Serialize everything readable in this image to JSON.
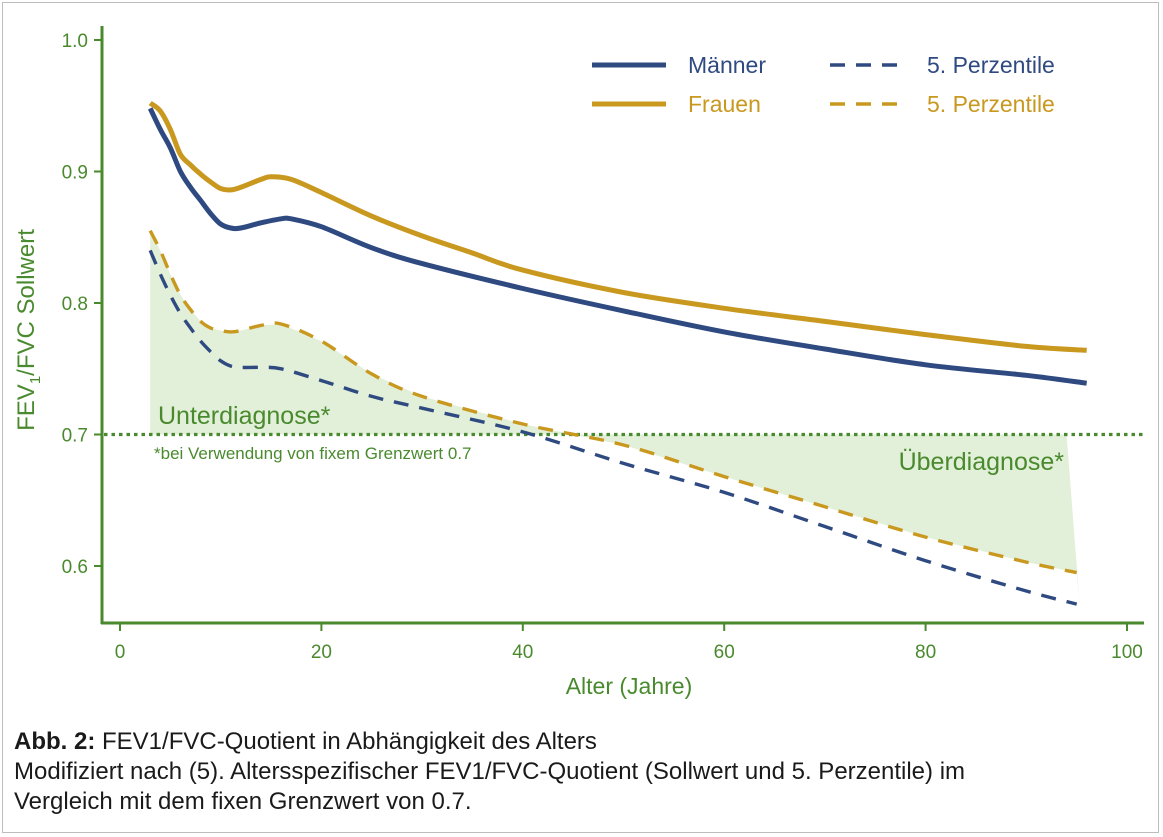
{
  "colors": {
    "green": "#4a8a2e",
    "green_fill": "#e2efd9",
    "men": "#2f4a80",
    "women": "#c9981f",
    "caption_text": "#1a1a1a"
  },
  "chart_data": {
    "type": "line",
    "xlabel": "Alter (Jahre)",
    "ylabel_main": "FEV",
    "ylabel_sub": "1",
    "ylabel_rest": "/FVC Sollwert",
    "xlim": [
      0,
      100
    ],
    "ylim": [
      0.55,
      1.0
    ],
    "xticks": [
      0,
      20,
      40,
      60,
      80,
      100
    ],
    "yticks": [
      0.6,
      0.7,
      0.8,
      0.9,
      1.0
    ],
    "ytick_labels": [
      "0.6",
      "0.7",
      "0.8",
      "0.9",
      "1.0"
    ],
    "threshold": 0.7,
    "series": [
      {
        "name": "Männer",
        "style": "solid",
        "color": "#2f4a80",
        "x": [
          3,
          4,
          5,
          6,
          7,
          8,
          9,
          10,
          11,
          12,
          14,
          16,
          17,
          20,
          25,
          30,
          40,
          50,
          60,
          70,
          80,
          90,
          96
        ],
        "y": [
          0.948,
          0.932,
          0.918,
          0.9,
          0.888,
          0.878,
          0.868,
          0.86,
          0.857,
          0.857,
          0.861,
          0.864,
          0.864,
          0.858,
          0.842,
          0.83,
          0.811,
          0.794,
          0.778,
          0.765,
          0.753,
          0.745,
          0.739
        ]
      },
      {
        "name": "Frauen",
        "style": "solid",
        "color": "#c9981f",
        "x": [
          3,
          4,
          5,
          6,
          7,
          8,
          9,
          10,
          11,
          12,
          14,
          15,
          17,
          20,
          25,
          30,
          35,
          40,
          50,
          60,
          70,
          80,
          90,
          96
        ],
        "y": [
          0.952,
          0.946,
          0.932,
          0.913,
          0.905,
          0.898,
          0.892,
          0.887,
          0.886,
          0.888,
          0.894,
          0.896,
          0.894,
          0.884,
          0.866,
          0.851,
          0.838,
          0.825,
          0.808,
          0.796,
          0.786,
          0.776,
          0.767,
          0.764
        ]
      },
      {
        "name": "5. Perzentile",
        "group": "Männer",
        "style": "dashed",
        "color": "#2f4a80",
        "x": [
          3,
          4,
          5,
          6,
          7,
          8,
          9,
          10,
          11,
          12,
          14,
          16,
          20,
          25,
          30,
          40,
          50,
          60,
          70,
          80,
          90,
          95
        ],
        "y": [
          0.84,
          0.822,
          0.806,
          0.792,
          0.781,
          0.771,
          0.763,
          0.756,
          0.752,
          0.751,
          0.751,
          0.75,
          0.741,
          0.729,
          0.72,
          0.702,
          0.678,
          0.656,
          0.63,
          0.604,
          0.581,
          0.571
        ]
      },
      {
        "name": "5. Perzentile",
        "group": "Frauen",
        "style": "dashed",
        "color": "#c9981f",
        "x": [
          3,
          4,
          5,
          6,
          7,
          8,
          9,
          10,
          11,
          12,
          14,
          16,
          20,
          25,
          30,
          40,
          50,
          60,
          70,
          80,
          90,
          95
        ],
        "y": [
          0.855,
          0.84,
          0.822,
          0.806,
          0.795,
          0.786,
          0.781,
          0.779,
          0.778,
          0.779,
          0.783,
          0.784,
          0.771,
          0.746,
          0.729,
          0.708,
          0.692,
          0.668,
          0.645,
          0.622,
          0.603,
          0.595
        ]
      }
    ],
    "legend": [
      {
        "label": "Männer",
        "style": "solid",
        "color": "#2f4a80"
      },
      {
        "label": "5. Perzentile",
        "style": "dashed",
        "color": "#2f4a80"
      },
      {
        "label": "Frauen",
        "style": "solid",
        "color": "#c9981f"
      },
      {
        "label": "5. Perzentile",
        "style": "dashed",
        "color": "#c9981f"
      }
    ],
    "legend_position": "top-right",
    "annotations": {
      "under": "Unterdiagnose*",
      "under_note": "*bei Verwendung von fixem Grenzwert 0.7",
      "over": "Überdiagnose*"
    }
  },
  "caption": {
    "label": "Abb. 2:",
    "title": " FEV1/FVC-Quotient in Abhängigkeit des Alters",
    "line2": "Modifiziert nach (5). Altersspezifischer FEV1/FVC-Quotient (Sollwert und 5. Perzentile) im",
    "line3": "Vergleich mit dem fixen Grenzwert von 0.7."
  }
}
